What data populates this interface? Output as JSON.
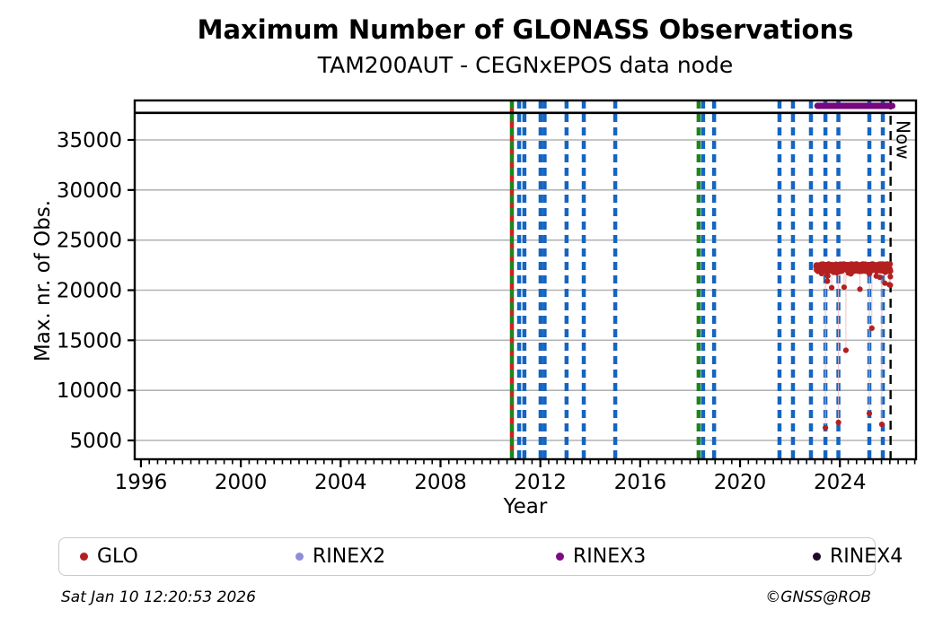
{
  "header": {
    "title": "Maximum Number of GLONASS Observations",
    "subtitle": "TAM200AUT - CEGNxEPOS data node"
  },
  "axes": {
    "xlabel": "Year",
    "ylabel": "Max. nr. of Obs."
  },
  "chart_data": {
    "type": "scatter",
    "title": "Maximum Number of GLONASS Observations",
    "subtitle": "TAM200AUT - CEGNxEPOS data node",
    "xlabel": "Year",
    "ylabel": "Max. nr. of Obs.",
    "xlim": [
      1995.75,
      2027.05
    ],
    "ylim": [
      3120,
      38940
    ],
    "x_ticks": [
      1996,
      2000,
      2004,
      2008,
      2012,
      2016,
      2020,
      2024
    ],
    "x_minor_per_year": 3,
    "y_ticks": [
      5000,
      10000,
      15000,
      20000,
      25000,
      30000,
      35000
    ],
    "grid_color": "#b3b3b3",
    "hline": {
      "value": 37700,
      "color": "#000000"
    },
    "now_line": {
      "year": 2026.03,
      "label": "Now",
      "color": "#000000"
    },
    "vlines": [
      {
        "year": 2010.86,
        "color": "#1e8420",
        "style": "greenred"
      },
      {
        "year": 2011.15,
        "color": "#1565c0"
      },
      {
        "year": 2011.36,
        "color": "#1565c0"
      },
      {
        "year": 2012.01,
        "color": "#1565c0"
      },
      {
        "year": 2012.17,
        "color": "#1565c0"
      },
      {
        "year": 2013.05,
        "color": "#1565c0"
      },
      {
        "year": 2013.74,
        "color": "#1565c0"
      },
      {
        "year": 2015.0,
        "color": "#1565c0"
      },
      {
        "year": 2018.34,
        "color": "#1e8420"
      },
      {
        "year": 2018.52,
        "color": "#1565c0"
      },
      {
        "year": 2018.96,
        "color": "#1565c0"
      },
      {
        "year": 2021.58,
        "color": "#1565c0"
      },
      {
        "year": 2022.12,
        "color": "#1565c0"
      },
      {
        "year": 2022.84,
        "color": "#1565c0"
      },
      {
        "year": 2023.42,
        "color": "#1565c0"
      },
      {
        "year": 2023.94,
        "color": "#1565c0"
      },
      {
        "year": 2025.18,
        "color": "#1565c0"
      },
      {
        "year": 2025.72,
        "color": "#1565c0"
      }
    ],
    "vline_red_color": "#cc2222",
    "series": [
      {
        "name": "GLO",
        "color": "#b42020",
        "connector_color": "#efb9b9",
        "band": {
          "start": 2023.05,
          "end": 2026.03,
          "step": 0.0075,
          "base": 22250,
          "jitter": 370,
          "low_tail_chance": 0.07,
          "low_tail_extra": 850,
          "seed": 42
        },
        "extra_points": [
          [
            2023.42,
            6250
          ],
          [
            2023.5,
            20900
          ],
          [
            2023.67,
            20250
          ],
          [
            2023.94,
            6800
          ],
          [
            2024.17,
            20300
          ],
          [
            2024.24,
            14000
          ],
          [
            2024.8,
            20100
          ],
          [
            2025.18,
            7700
          ],
          [
            2025.28,
            16200
          ],
          [
            2025.68,
            6600
          ],
          [
            2025.8,
            20700
          ],
          [
            2025.98,
            20550
          ],
          [
            2026.02,
            20500
          ]
        ]
      },
      {
        "name": "RINEX3",
        "color": "#76077e",
        "segment": {
          "start": 2023.1,
          "end": 2026.1,
          "value": 38400
        }
      }
    ]
  },
  "legend": {
    "items": [
      {
        "label": "GLO",
        "color": "#b42020"
      },
      {
        "label": "RINEX2",
        "color": "#8e8ed6"
      },
      {
        "label": "RINEX3",
        "color": "#7d0b80"
      },
      {
        "label": "RINEX4",
        "color": "#200a26"
      }
    ]
  },
  "footer": {
    "timestamp": "Sat Jan 10 12:20:53 2026",
    "copyright": "©GNSS@ROB"
  }
}
